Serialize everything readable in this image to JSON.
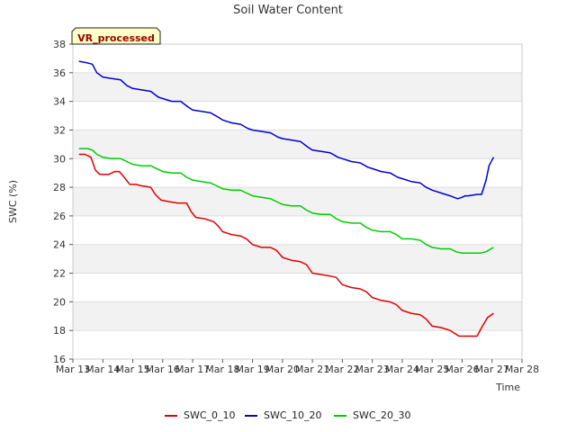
{
  "chart_data": {
    "type": "line",
    "title": "Soil Water Content",
    "xlabel": "Time",
    "ylabel": "SWC (%)",
    "badge": "VR_processed",
    "xlim": [
      13,
      28
    ],
    "ylim": [
      16,
      38
    ],
    "x_ticks": [
      {
        "v": 13,
        "label": "Mar 13"
      },
      {
        "v": 14,
        "label": "Mar 14"
      },
      {
        "v": 15,
        "label": "Mar 15"
      },
      {
        "v": 16,
        "label": "Mar 16"
      },
      {
        "v": 17,
        "label": "Mar 17"
      },
      {
        "v": 18,
        "label": "Mar 18"
      },
      {
        "v": 19,
        "label": "Mar 19"
      },
      {
        "v": 20,
        "label": "Mar 20"
      },
      {
        "v": 21,
        "label": "Mar 21"
      },
      {
        "v": 22,
        "label": "Mar 22"
      },
      {
        "v": 23,
        "label": "Mar 23"
      },
      {
        "v": 24,
        "label": "Mar 24"
      },
      {
        "v": 25,
        "label": "Mar 25"
      },
      {
        "v": 26,
        "label": "Mar 26"
      },
      {
        "v": 27,
        "label": "Mar 27"
      },
      {
        "v": 28,
        "label": "Mar 28"
      }
    ],
    "y_ticks": [
      16,
      18,
      20,
      22,
      24,
      26,
      28,
      30,
      32,
      34,
      36,
      38
    ],
    "grid": "horizontal alternating bands",
    "legend_position": "bottom",
    "series": [
      {
        "name": "SWC_0_10",
        "color": "#dd0000",
        "x": [
          13.2,
          13.4,
          13.6,
          13.75,
          13.9,
          14.2,
          14.4,
          14.55,
          14.75,
          14.9,
          15.1,
          15.3,
          15.6,
          15.75,
          15.95,
          16.2,
          16.5,
          16.8,
          16.95,
          17.1,
          17.4,
          17.7,
          17.85,
          18.0,
          18.3,
          18.6,
          18.8,
          19.0,
          19.3,
          19.6,
          19.8,
          20.0,
          20.3,
          20.6,
          20.8,
          21.0,
          21.3,
          21.6,
          21.8,
          22.0,
          22.3,
          22.6,
          22.8,
          23.0,
          23.3,
          23.6,
          23.8,
          24.0,
          24.3,
          24.6,
          24.8,
          25.0,
          25.3,
          25.6,
          25.75,
          25.9,
          26.2,
          26.5,
          26.65,
          26.85,
          27.05
        ],
        "y": [
          30.3,
          30.3,
          30.1,
          29.2,
          28.9,
          28.9,
          29.1,
          29.1,
          28.6,
          28.2,
          28.2,
          28.1,
          28.0,
          27.5,
          27.1,
          27.0,
          26.9,
          26.9,
          26.3,
          25.9,
          25.8,
          25.6,
          25.3,
          24.9,
          24.7,
          24.6,
          24.4,
          24.0,
          23.8,
          23.8,
          23.6,
          23.1,
          22.9,
          22.8,
          22.6,
          22.0,
          21.9,
          21.8,
          21.7,
          21.2,
          21.0,
          20.9,
          20.7,
          20.3,
          20.1,
          20.0,
          19.8,
          19.4,
          19.2,
          19.1,
          18.8,
          18.3,
          18.2,
          18.0,
          17.8,
          17.6,
          17.6,
          17.6,
          18.2,
          18.9,
          19.2
        ]
      },
      {
        "name": "SWC_10_20",
        "color": "#0000cc",
        "x": [
          13.2,
          13.45,
          13.65,
          13.8,
          14.0,
          14.3,
          14.6,
          14.8,
          15.0,
          15.3,
          15.6,
          15.85,
          16.0,
          16.3,
          16.6,
          16.85,
          17.0,
          17.3,
          17.6,
          17.85,
          18.0,
          18.3,
          18.6,
          18.85,
          19.0,
          19.3,
          19.6,
          19.85,
          20.0,
          20.3,
          20.6,
          20.85,
          21.0,
          21.3,
          21.6,
          21.85,
          22.0,
          22.3,
          22.6,
          22.85,
          23.0,
          23.3,
          23.6,
          23.85,
          24.0,
          24.3,
          24.6,
          24.8,
          25.0,
          25.3,
          25.6,
          25.85,
          26.0,
          26.1,
          26.2,
          26.5,
          26.65,
          26.8,
          26.9,
          27.05
        ],
        "y": [
          36.8,
          36.7,
          36.6,
          36.0,
          35.7,
          35.6,
          35.5,
          35.1,
          34.9,
          34.8,
          34.7,
          34.3,
          34.2,
          34.0,
          34.0,
          33.6,
          33.4,
          33.3,
          33.2,
          32.9,
          32.7,
          32.5,
          32.4,
          32.1,
          32.0,
          31.9,
          31.8,
          31.5,
          31.4,
          31.3,
          31.2,
          30.8,
          30.6,
          30.5,
          30.4,
          30.1,
          30.0,
          29.8,
          29.7,
          29.4,
          29.3,
          29.1,
          29.0,
          28.7,
          28.6,
          28.4,
          28.3,
          28.0,
          27.8,
          27.6,
          27.4,
          27.2,
          27.3,
          27.4,
          27.4,
          27.5,
          27.5,
          28.5,
          29.5,
          30.1
        ]
      },
      {
        "name": "SWC_20_30",
        "color": "#00cc00",
        "x": [
          13.2,
          13.5,
          13.65,
          13.8,
          14.0,
          14.3,
          14.6,
          14.8,
          15.0,
          15.3,
          15.6,
          15.8,
          16.0,
          16.3,
          16.6,
          16.8,
          17.0,
          17.3,
          17.6,
          17.8,
          18.0,
          18.3,
          18.6,
          18.8,
          19.0,
          19.3,
          19.6,
          19.8,
          20.0,
          20.3,
          20.6,
          20.8,
          21.0,
          21.3,
          21.6,
          21.8,
          22.0,
          22.3,
          22.6,
          22.8,
          23.0,
          23.3,
          23.6,
          23.8,
          24.0,
          24.3,
          24.6,
          24.8,
          25.0,
          25.3,
          25.6,
          25.8,
          26.0,
          26.3,
          26.6,
          26.8,
          27.05
        ],
        "y": [
          30.7,
          30.7,
          30.6,
          30.3,
          30.1,
          30.0,
          30.0,
          29.8,
          29.6,
          29.5,
          29.5,
          29.3,
          29.1,
          29.0,
          29.0,
          28.7,
          28.5,
          28.4,
          28.3,
          28.1,
          27.9,
          27.8,
          27.8,
          27.6,
          27.4,
          27.3,
          27.2,
          27.0,
          26.8,
          26.7,
          26.7,
          26.4,
          26.2,
          26.1,
          26.1,
          25.8,
          25.6,
          25.5,
          25.5,
          25.2,
          25.0,
          24.9,
          24.9,
          24.7,
          24.4,
          24.4,
          24.3,
          24.0,
          23.8,
          23.7,
          23.7,
          23.5,
          23.4,
          23.4,
          23.4,
          23.5,
          23.8
        ]
      }
    ]
  }
}
